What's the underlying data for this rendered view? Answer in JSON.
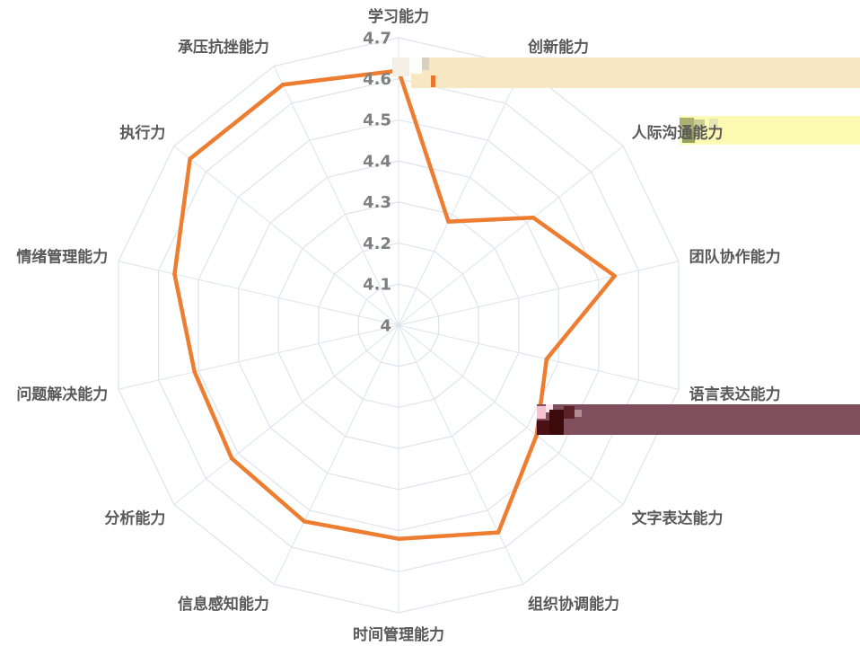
{
  "chart_data": {
    "type": "radar",
    "categories": [
      "学习能力",
      "创新能力",
      "人际沟通能力",
      "团队协作能力",
      "语言表达能力",
      "文字表达能力",
      "组织协调能力",
      "时间管理能力",
      "信息感知能力",
      "分析能力",
      "问题解决能力",
      "情绪管理能力",
      "执行力",
      "承压抗挫能力"
    ],
    "series": [
      {
        "values": [
          4.62,
          4.28,
          4.42,
          4.54,
          4.37,
          4.43,
          4.56,
          4.52,
          4.53,
          4.52,
          4.51,
          4.56,
          4.65,
          4.65
        ]
      }
    ],
    "rlim": [
      4,
      4.7
    ],
    "tick_labels": [
      "4",
      "4.1",
      "4.2",
      "4.3",
      "4.4",
      "4.5",
      "4.6",
      "4.7"
    ],
    "grid": true,
    "colors": {
      "series": "#ED7D31",
      "grid": "#DCE4EE",
      "category_label": "#595959",
      "tick_label": "#7F7F7F"
    }
  }
}
